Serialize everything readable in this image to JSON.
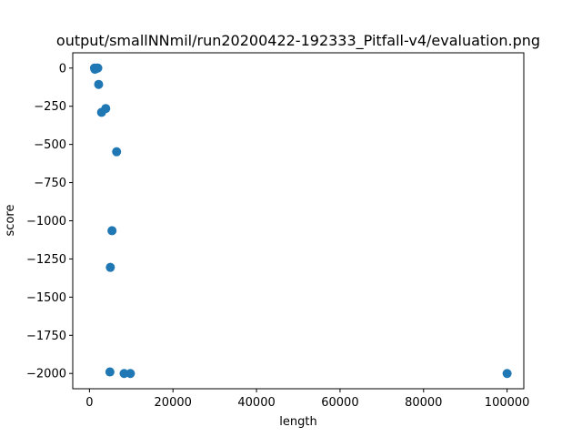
{
  "chart_data": {
    "type": "scatter",
    "title": "output/smallNNmil/run20200422-192333_Pitfall-v4/evaluation.png",
    "xlabel": "length",
    "ylabel": "score",
    "xlim": [
      -4000,
      104000
    ],
    "ylim": [
      -2100,
      100
    ],
    "grid": false,
    "legend": "none",
    "marker_color": "#1f77b4",
    "x_ticks": [
      0,
      20000,
      40000,
      60000,
      80000,
      100000
    ],
    "x_tick_labels": [
      "0",
      "20000",
      "40000",
      "60000",
      "80000",
      "100000"
    ],
    "y_ticks": [
      0,
      -250,
      -500,
      -750,
      -1000,
      -1250,
      -1500,
      -1750,
      -2000
    ],
    "y_tick_labels": [
      "0",
      "−250",
      "−500",
      "−750",
      "−1000",
      "−1250",
      "−1500",
      "−1750",
      "−2000"
    ],
    "points": [
      {
        "x": 1200,
        "y": 0
      },
      {
        "x": 1500,
        "y": -5
      },
      {
        "x": 1700,
        "y": 0
      },
      {
        "x": 1300,
        "y": -8
      },
      {
        "x": 2000,
        "y": 0
      },
      {
        "x": 2200,
        "y": -107
      },
      {
        "x": 2900,
        "y": -290
      },
      {
        "x": 3900,
        "y": -265
      },
      {
        "x": 6500,
        "y": -548
      },
      {
        "x": 5400,
        "y": -1065
      },
      {
        "x": 5000,
        "y": -1305
      },
      {
        "x": 4900,
        "y": -1990
      },
      {
        "x": 8300,
        "y": -2000
      },
      {
        "x": 9800,
        "y": -2000
      },
      {
        "x": 100000,
        "y": -2000
      }
    ]
  }
}
